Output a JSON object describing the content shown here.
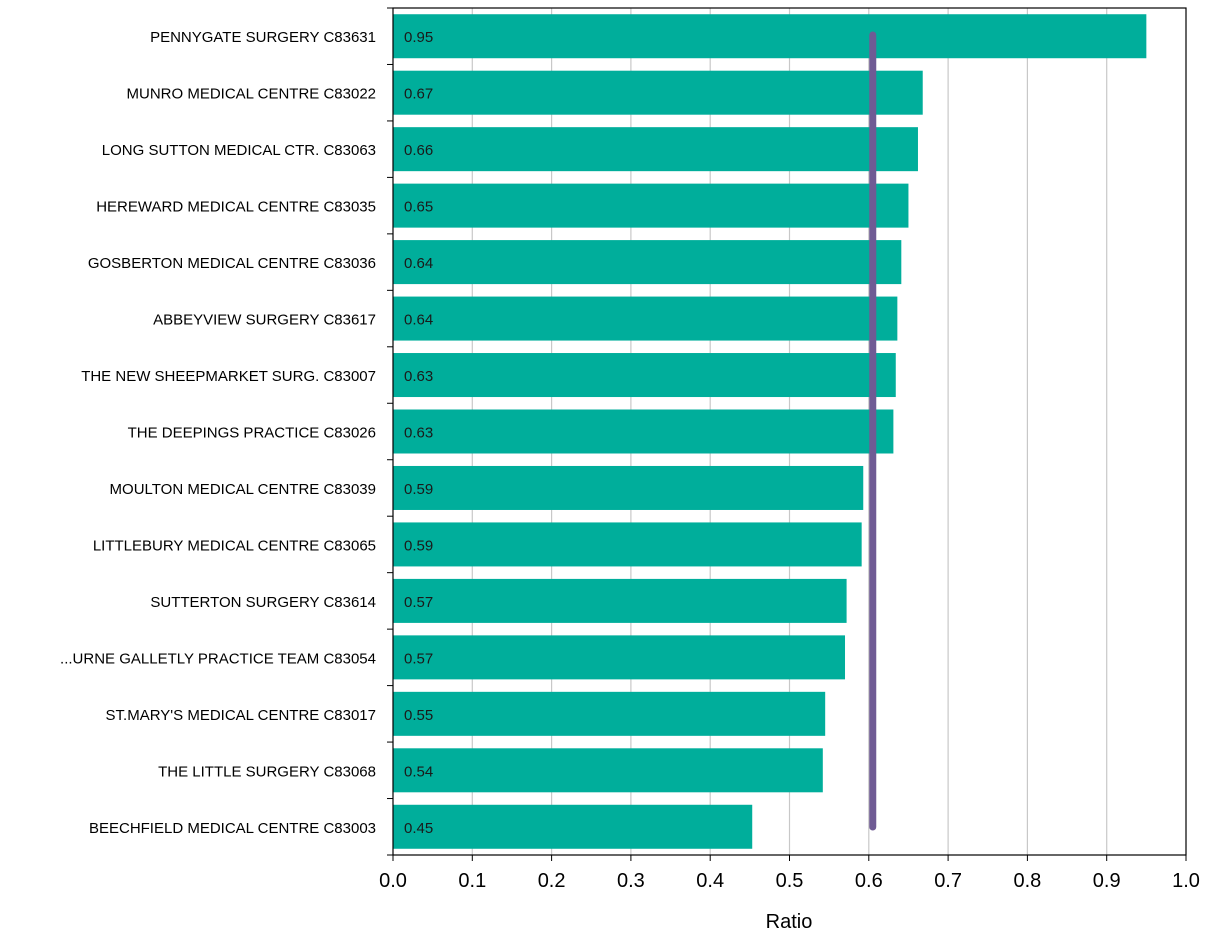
{
  "chart_data": {
    "type": "bar",
    "orientation": "horizontal",
    "title": "",
    "xlabel": "Ratio",
    "ylabel": "",
    "xlim": [
      0,
      1
    ],
    "xticks": [
      "0.0",
      "0.1",
      "0.2",
      "0.3",
      "0.4",
      "0.5",
      "0.6",
      "0.7",
      "0.8",
      "0.9",
      "1.0"
    ],
    "grid": "vertical",
    "legend": "none",
    "categories": [
      "PENNYGATE SURGERY C83631",
      "MUNRO MEDICAL CENTRE C83022",
      "LONG SUTTON MEDICAL CTR. C83063",
      "HEREWARD MEDICAL CENTRE C83035",
      "GOSBERTON MEDICAL CENTRE C83036",
      "ABBEYVIEW SURGERY C83617",
      "THE NEW SHEEPMARKET SURG. C83007",
      "THE DEEPINGS PRACTICE C83026",
      "MOULTON MEDICAL CENTRE C83039",
      "LITTLEBURY MEDICAL CENTRE C83065",
      "SUTTERTON SURGERY C83614",
      "...URNE GALLETLY PRACTICE TEAM C83054",
      "ST.MARY'S MEDICAL CENTRE C83017",
      "THE LITTLE SURGERY C83068",
      "BEECHFIELD MEDICAL CENTRE C83003"
    ],
    "values": [
      0.95,
      0.668,
      0.662,
      0.65,
      0.641,
      0.636,
      0.634,
      0.631,
      0.593,
      0.591,
      0.572,
      0.57,
      0.545,
      0.542,
      0.453
    ],
    "value_labels": [
      "0.95",
      "0.67",
      "0.66",
      "0.65",
      "0.64",
      "0.64",
      "0.63",
      "0.63",
      "0.59",
      "0.59",
      "0.57",
      "0.57",
      "0.55",
      "0.54",
      "0.45"
    ],
    "reference_line": {
      "value": 0.605,
      "color": "#6f5b94"
    },
    "bar_color": "#00ae9b",
    "grid_color": "#c8c8c8",
    "axis_color": "#000000"
  }
}
